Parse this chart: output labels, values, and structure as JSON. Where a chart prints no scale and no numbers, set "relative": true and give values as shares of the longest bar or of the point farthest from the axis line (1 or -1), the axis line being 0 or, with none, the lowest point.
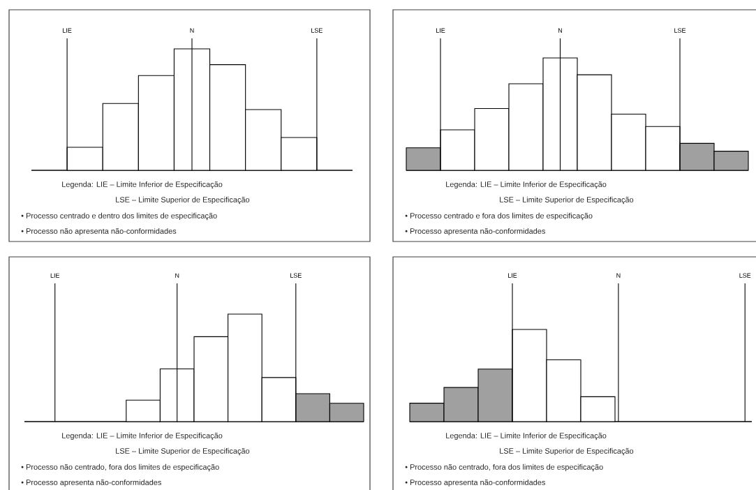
{
  "chart_data": [
    {
      "type": "bar",
      "relative": true,
      "categories": [
        null,
        null,
        null,
        null,
        null,
        null,
        null
      ],
      "values": [
        0.19,
        0.55,
        0.78,
        1.0,
        0.87,
        0.5,
        0.27
      ],
      "colors": [
        "#ffffff",
        "#ffffff",
        "#ffffff",
        "#ffffff",
        "#ffffff",
        "#ffffff",
        "#ffffff"
      ],
      "annotations": [
        "LIE",
        "N",
        "LSE",
        "Legenda: LIE – Limite Inferior de Especificação",
        "LSE – Limite Superior de Especificação",
        "• Processo centrado e dentro dos limites de especificação",
        "• Processo não apresenta não-conformidades"
      ]
    },
    {
      "type": "bar",
      "relative": true,
      "categories": [
        null,
        null,
        null,
        null,
        null,
        null,
        null,
        null,
        null,
        null
      ],
      "values": [
        0.2,
        0.36,
        0.55,
        0.77,
        1.0,
        0.85,
        0.5,
        0.39,
        0.24,
        0.17
      ],
      "colors": [
        "#a0a0a0",
        "#ffffff",
        "#ffffff",
        "#ffffff",
        "#ffffff",
        "#ffffff",
        "#ffffff",
        "#ffffff",
        "#a0a0a0",
        "#a0a0a0"
      ],
      "annotations": [
        "LIE",
        "N",
        "LSE",
        "Legenda: LIE – Limite Inferior de Especificação",
        "LSE – Limite Superior de Especificação",
        "• Processo centrado e fora dos limites de especificação",
        "• Processo apresenta não-conformidades"
      ]
    },
    {
      "type": "bar",
      "relative": true,
      "categories": [
        null,
        null,
        null,
        null,
        null,
        null,
        null
      ],
      "values": [
        0.2,
        0.49,
        0.79,
        1.0,
        0.41,
        0.26,
        0.17
      ],
      "colors": [
        "#ffffff",
        "#ffffff",
        "#ffffff",
        "#ffffff",
        "#ffffff",
        "#a0a0a0",
        "#a0a0a0"
      ],
      "annotations": [
        "LIE",
        "N",
        "LSE",
        "Legenda: LIE – Limite Inferior de Especificação",
        "LSE – Limite Superior de Especificação",
        "• Processo não centrado, fora dos limites de especificação",
        "• Processo apresenta não-conformidades"
      ]
    },
    {
      "type": "bar",
      "relative": true,
      "categories": [
        null,
        null,
        null,
        null,
        null,
        null
      ],
      "values": [
        0.2,
        0.37,
        0.57,
        1.0,
        0.67,
        0.27
      ],
      "colors": [
        "#a0a0a0",
        "#a0a0a0",
        "#a0a0a0",
        "#ffffff",
        "#ffffff",
        "#ffffff"
      ],
      "annotations": [
        "LIE",
        "N",
        "LSE",
        "Legenda: LIE – Limite Inferior de Especificação",
        "LSE – Limite Superior de Especificação",
        "• Processo não centrado, fora dos limites de especificação",
        "• Processo apresenta não-conformidades"
      ]
    }
  ]
}
